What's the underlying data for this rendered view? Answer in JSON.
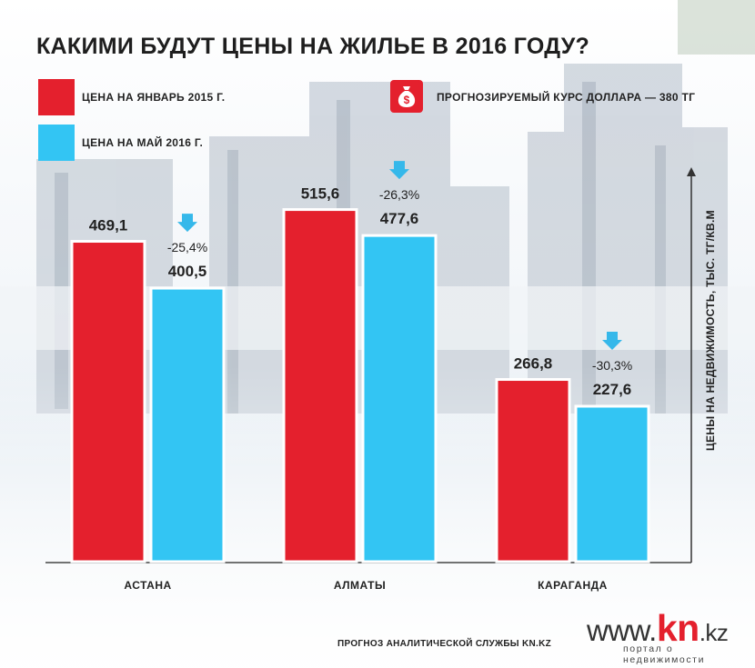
{
  "title": "КАКИМИ БУДУТ ЦЕНЫ НА ЖИЛЬЕ В 2016 ГОДУ?",
  "legend": {
    "jan2015": "ЦЕНА НА ЯНВАРЬ 2015 Г.",
    "may2016": "ЦЕНА НА МАЙ 2016 Г.",
    "forecast": "ПРОГНОЗИРУЕМЫЙ КУРС ДОЛЛАРА — 380 ТГ",
    "forecast_icon": "money-bag-icon"
  },
  "colors": {
    "jan2015": "#e4202d",
    "may2016": "#33c5f3",
    "arrow": "#35b8ea"
  },
  "chart_data": {
    "type": "bar",
    "categories": [
      "АСТАНА",
      "АЛМАТЫ",
      "КАРАГАНДА"
    ],
    "series": [
      {
        "name": "ЦЕНА НА ЯНВАРЬ 2015 Г.",
        "values": [
          469.1,
          515.6,
          266.8
        ],
        "labels": [
          "469,1",
          "515,6",
          "266,8"
        ]
      },
      {
        "name": "ЦЕНА НА МАЙ 2016 Г.",
        "values": [
          400.5,
          477.6,
          227.6
        ],
        "labels": [
          "400,5",
          "477,6",
          "227,6"
        ]
      }
    ],
    "changes": [
      "-25,4%",
      "-26,3%",
      "-30,3%"
    ],
    "ylabel": "ЦЕНЫ НА НЕДВИЖИМОСТЬ, ТЫС. ТГ/КВ.М",
    "ylim": [
      0,
      535
    ]
  },
  "footer": {
    "source": "ПРОГНОЗ АНАЛИТИЧЕСКОЙ СЛУЖБЫ KN.KZ",
    "logo_www": "www.",
    "logo_kn": "kn",
    "logo_kz": ".kz",
    "logo_sub": "портал о недвижимости"
  }
}
